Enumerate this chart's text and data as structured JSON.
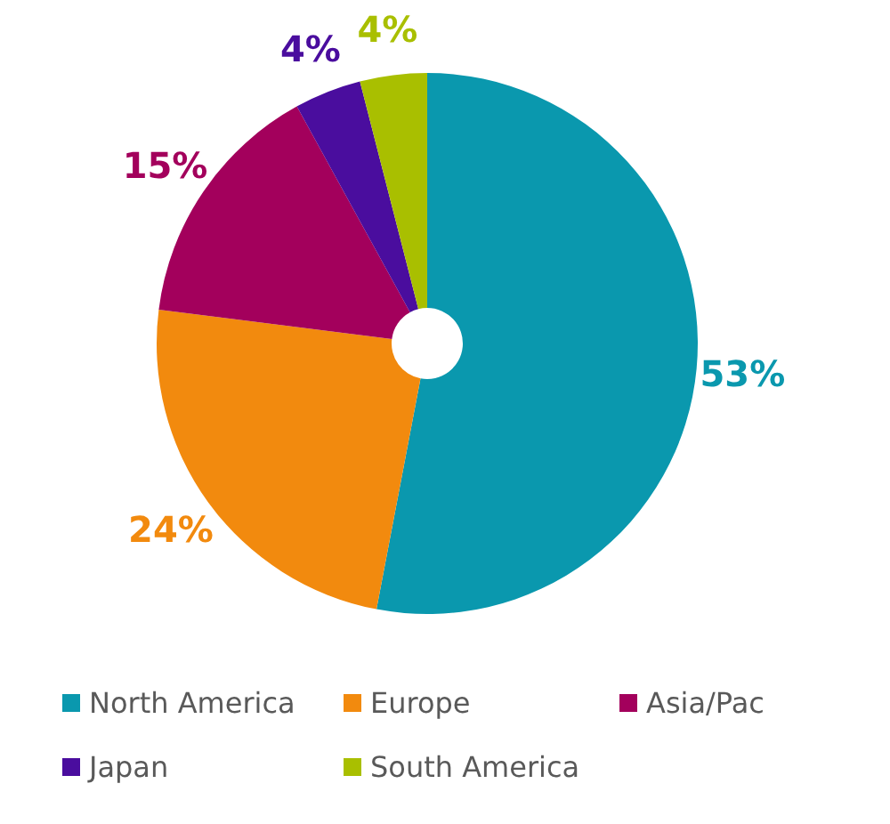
{
  "chart_data": {
    "type": "donut",
    "categories": [
      "North America",
      "Europe",
      "Asia/Pac",
      "Japan",
      "South America"
    ],
    "values": [
      53,
      24,
      15,
      4,
      4
    ],
    "value_labels": [
      "53%",
      "24%",
      "15%",
      "4%",
      "4%"
    ],
    "colors": [
      "#0a98ae",
      "#f28a0e",
      "#a3005c",
      "#4a0d9e",
      "#a9bf00"
    ],
    "legend": "bottom"
  }
}
